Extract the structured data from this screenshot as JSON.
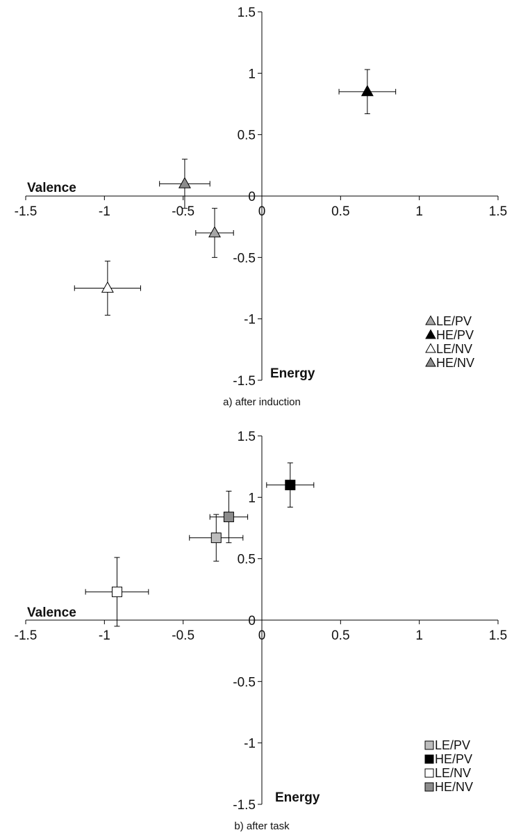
{
  "chart_data": [
    {
      "type": "scatter",
      "caption": "a) after induction",
      "xlabel": "Valence",
      "ylabel": "Energy",
      "xlim": [
        -1.5,
        1.5
      ],
      "ylim": [
        -1.5,
        1.5
      ],
      "x_ticks": [
        "-1.5",
        "-1",
        "-0.5",
        "0",
        "0.5",
        "1",
        "1.5"
      ],
      "y_ticks": [
        "1.5",
        "1",
        "0.5",
        "0",
        "-0.5",
        "-1",
        "-1.5"
      ],
      "marker": "triangle",
      "grid": false,
      "legend_position": "bottom-right",
      "series": [
        {
          "name": "LE/PV",
          "fill": "#a6a6a6",
          "x": -0.3,
          "y": -0.3,
          "x_err": 0.12,
          "y_err": 0.2
        },
        {
          "name": "HE/PV",
          "fill": "#000000",
          "x": 0.67,
          "y": 0.85,
          "x_err": 0.18,
          "y_err": 0.18
        },
        {
          "name": "LE/NV",
          "fill": "#ffffff",
          "x": -0.98,
          "y": -0.75,
          "x_err": 0.21,
          "y_err": 0.22
        },
        {
          "name": "HE/NV",
          "fill": "#8c8c8c",
          "x": -0.49,
          "y": 0.1,
          "x_err": 0.16,
          "y_err": 0.2
        }
      ]
    },
    {
      "type": "scatter",
      "caption": "b) after task",
      "xlabel": "Valence",
      "ylabel": "Energy",
      "xlim": [
        -1.5,
        1.5
      ],
      "ylim": [
        -1.5,
        1.5
      ],
      "x_ticks": [
        "-1.5",
        "-1",
        "-0.5",
        "0",
        "0.5",
        "1",
        "1.5"
      ],
      "y_ticks": [
        "1.5",
        "1",
        "0.5",
        "0",
        "-0.5",
        "-1",
        "-1.5"
      ],
      "marker": "square",
      "grid": false,
      "legend_position": "bottom-right",
      "series": [
        {
          "name": "LE/PV",
          "fill": "#bdbdbd",
          "x": -0.29,
          "y": 0.67,
          "x_err": 0.17,
          "y_err": 0.19
        },
        {
          "name": "HE/PV",
          "fill": "#000000",
          "x": 0.18,
          "y": 1.1,
          "x_err": 0.15,
          "y_err": 0.18
        },
        {
          "name": "LE/NV",
          "fill": "#ffffff",
          "x": -0.92,
          "y": 0.23,
          "x_err": 0.2,
          "y_err": 0.28
        },
        {
          "name": "HE/NV",
          "fill": "#8c8c8c",
          "x": -0.21,
          "y": 0.84,
          "x_err": 0.12,
          "y_err": 0.21
        }
      ]
    }
  ]
}
